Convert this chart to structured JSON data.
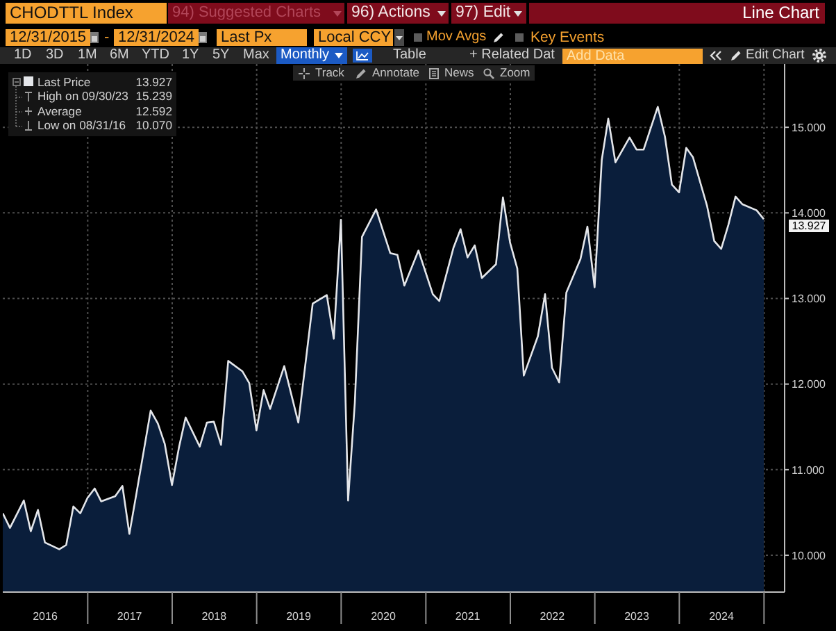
{
  "chart_data": {
    "type": "area",
    "title": "CHODTTL Index",
    "x": [
      "2015-12-31",
      "2016-01-31",
      "2016-03-31",
      "2016-04-30",
      "2016-05-31",
      "2016-06-30",
      "2016-08-31",
      "2016-09-30",
      "2016-10-31",
      "2016-11-30",
      "2016-12-31",
      "2017-01-31",
      "2017-02-28",
      "2017-04-30",
      "2017-05-31",
      "2017-06-30",
      "2017-07-31",
      "2017-09-30",
      "2017-10-31",
      "2017-11-30",
      "2017-12-31",
      "2018-01-31",
      "2018-02-28",
      "2018-04-30",
      "2018-05-31",
      "2018-06-30",
      "2018-07-31",
      "2018-08-31",
      "2018-10-31",
      "2018-11-30",
      "2018-12-31",
      "2019-01-31",
      "2019-02-28",
      "2019-04-30",
      "2019-06-30",
      "2019-08-31",
      "2019-10-31",
      "2019-11-30",
      "2019-12-31",
      "2020-01-31",
      "2020-02-29",
      "2020-03-31",
      "2020-05-31",
      "2020-07-31",
      "2020-08-31",
      "2020-09-30",
      "2020-11-30",
      "2021-01-31",
      "2021-02-28",
      "2021-04-30",
      "2021-05-31",
      "2021-06-30",
      "2021-07-31",
      "2021-08-31",
      "2021-10-31",
      "2021-11-30",
      "2021-12-31",
      "2022-01-31",
      "2022-02-28",
      "2022-04-30",
      "2022-05-31",
      "2022-06-30",
      "2022-07-31",
      "2022-08-31",
      "2022-10-31",
      "2022-11-30",
      "2022-12-31",
      "2023-01-31",
      "2023-02-28",
      "2023-03-31",
      "2023-05-31",
      "2023-06-30",
      "2023-07-31",
      "2023-09-30",
      "2023-10-31",
      "2023-11-30",
      "2023-12-31",
      "2024-01-31",
      "2024-02-29",
      "2024-04-30",
      "2024-05-31",
      "2024-06-30",
      "2024-07-31",
      "2024-08-31",
      "2024-09-30",
      "2024-11-30",
      "2024-12-31"
    ],
    "series": [
      {
        "name": "Last Price",
        "color": "#e4e6ea",
        "values": [
          10.49,
          10.32,
          10.64,
          10.28,
          10.53,
          10.15,
          10.07,
          10.12,
          10.57,
          10.49,
          10.67,
          10.78,
          10.63,
          10.69,
          10.81,
          10.25,
          10.73,
          11.69,
          11.54,
          11.3,
          10.82,
          11.27,
          11.61,
          11.27,
          11.55,
          11.56,
          11.29,
          12.27,
          12.15,
          12.01,
          11.46,
          11.93,
          11.71,
          12.21,
          11.55,
          12.94,
          13.04,
          12.53,
          13.92,
          10.64,
          11.78,
          13.72,
          14.04,
          13.53,
          13.51,
          13.15,
          13.56,
          13.05,
          12.97,
          13.59,
          13.81,
          13.48,
          13.62,
          13.24,
          13.4,
          14.18,
          13.65,
          13.35,
          12.1,
          12.56,
          13.05,
          12.19,
          12.02,
          13.07,
          13.46,
          13.84,
          13.13,
          14.62,
          15.1,
          14.59,
          14.88,
          14.74,
          14.74,
          15.239,
          14.89,
          14.33,
          14.24,
          14.76,
          14.65,
          14.08,
          13.67,
          13.58,
          13.86,
          14.19,
          14.1,
          14.03,
          13.927
        ]
      }
    ],
    "xlim": [
      "2015-12-31",
      "2025-03-31"
    ],
    "xticks": [
      {
        "value": "2016-07-01",
        "label": "2016"
      },
      {
        "value": "2017-01-01",
        "label": null
      },
      {
        "value": "2017-07-01",
        "label": "2017"
      },
      {
        "value": "2018-01-01",
        "label": null
      },
      {
        "value": "2018-07-01",
        "label": "2018"
      },
      {
        "value": "2019-01-01",
        "label": null
      },
      {
        "value": "2019-07-01",
        "label": "2019"
      },
      {
        "value": "2020-01-01",
        "label": null
      },
      {
        "value": "2020-07-01",
        "label": "2020"
      },
      {
        "value": "2021-01-01",
        "label": null
      },
      {
        "value": "2021-07-01",
        "label": "2021"
      },
      {
        "value": "2022-01-01",
        "label": null
      },
      {
        "value": "2022-07-01",
        "label": "2022"
      },
      {
        "value": "2023-01-01",
        "label": null
      },
      {
        "value": "2023-07-01",
        "label": "2023"
      },
      {
        "value": "2024-01-01",
        "label": null
      },
      {
        "value": "2024-07-01",
        "label": "2024"
      },
      {
        "value": "2025-01-01",
        "label": null
      }
    ],
    "ylim": [
      9.57,
      15.74
    ],
    "yticks": [
      {
        "value": 10,
        "label": "10.000"
      },
      {
        "value": 11,
        "label": "11.000"
      },
      {
        "value": 12,
        "label": "12.000"
      },
      {
        "value": 13,
        "label": "13.000"
      },
      {
        "value": 14,
        "label": "14.000"
      },
      {
        "value": 15,
        "label": "15.000"
      }
    ],
    "grid": true,
    "legend": "top left",
    "annotations": [
      "94) Suggested Charts",
      "96) Actions",
      "97) Edit",
      "Line Chart",
      "12/31/2015",
      "-",
      "12/31/2024",
      "Last Px",
      "Local CCY",
      "Mov Avgs",
      "Key Events",
      "1D",
      "3D",
      "1M",
      "6M",
      "YTD",
      "1Y",
      "5Y",
      "Max",
      "Monthly",
      "Table",
      "+ Related Dat",
      "Add Data",
      "Edit Chart",
      "Track",
      "Annotate",
      "News",
      "Zoom",
      "13.927",
      "High on 09/30/23",
      "15.239",
      "Average",
      "12.592",
      "Low on 08/31/16",
      "10.070",
      "13.927"
    ]
  }
}
